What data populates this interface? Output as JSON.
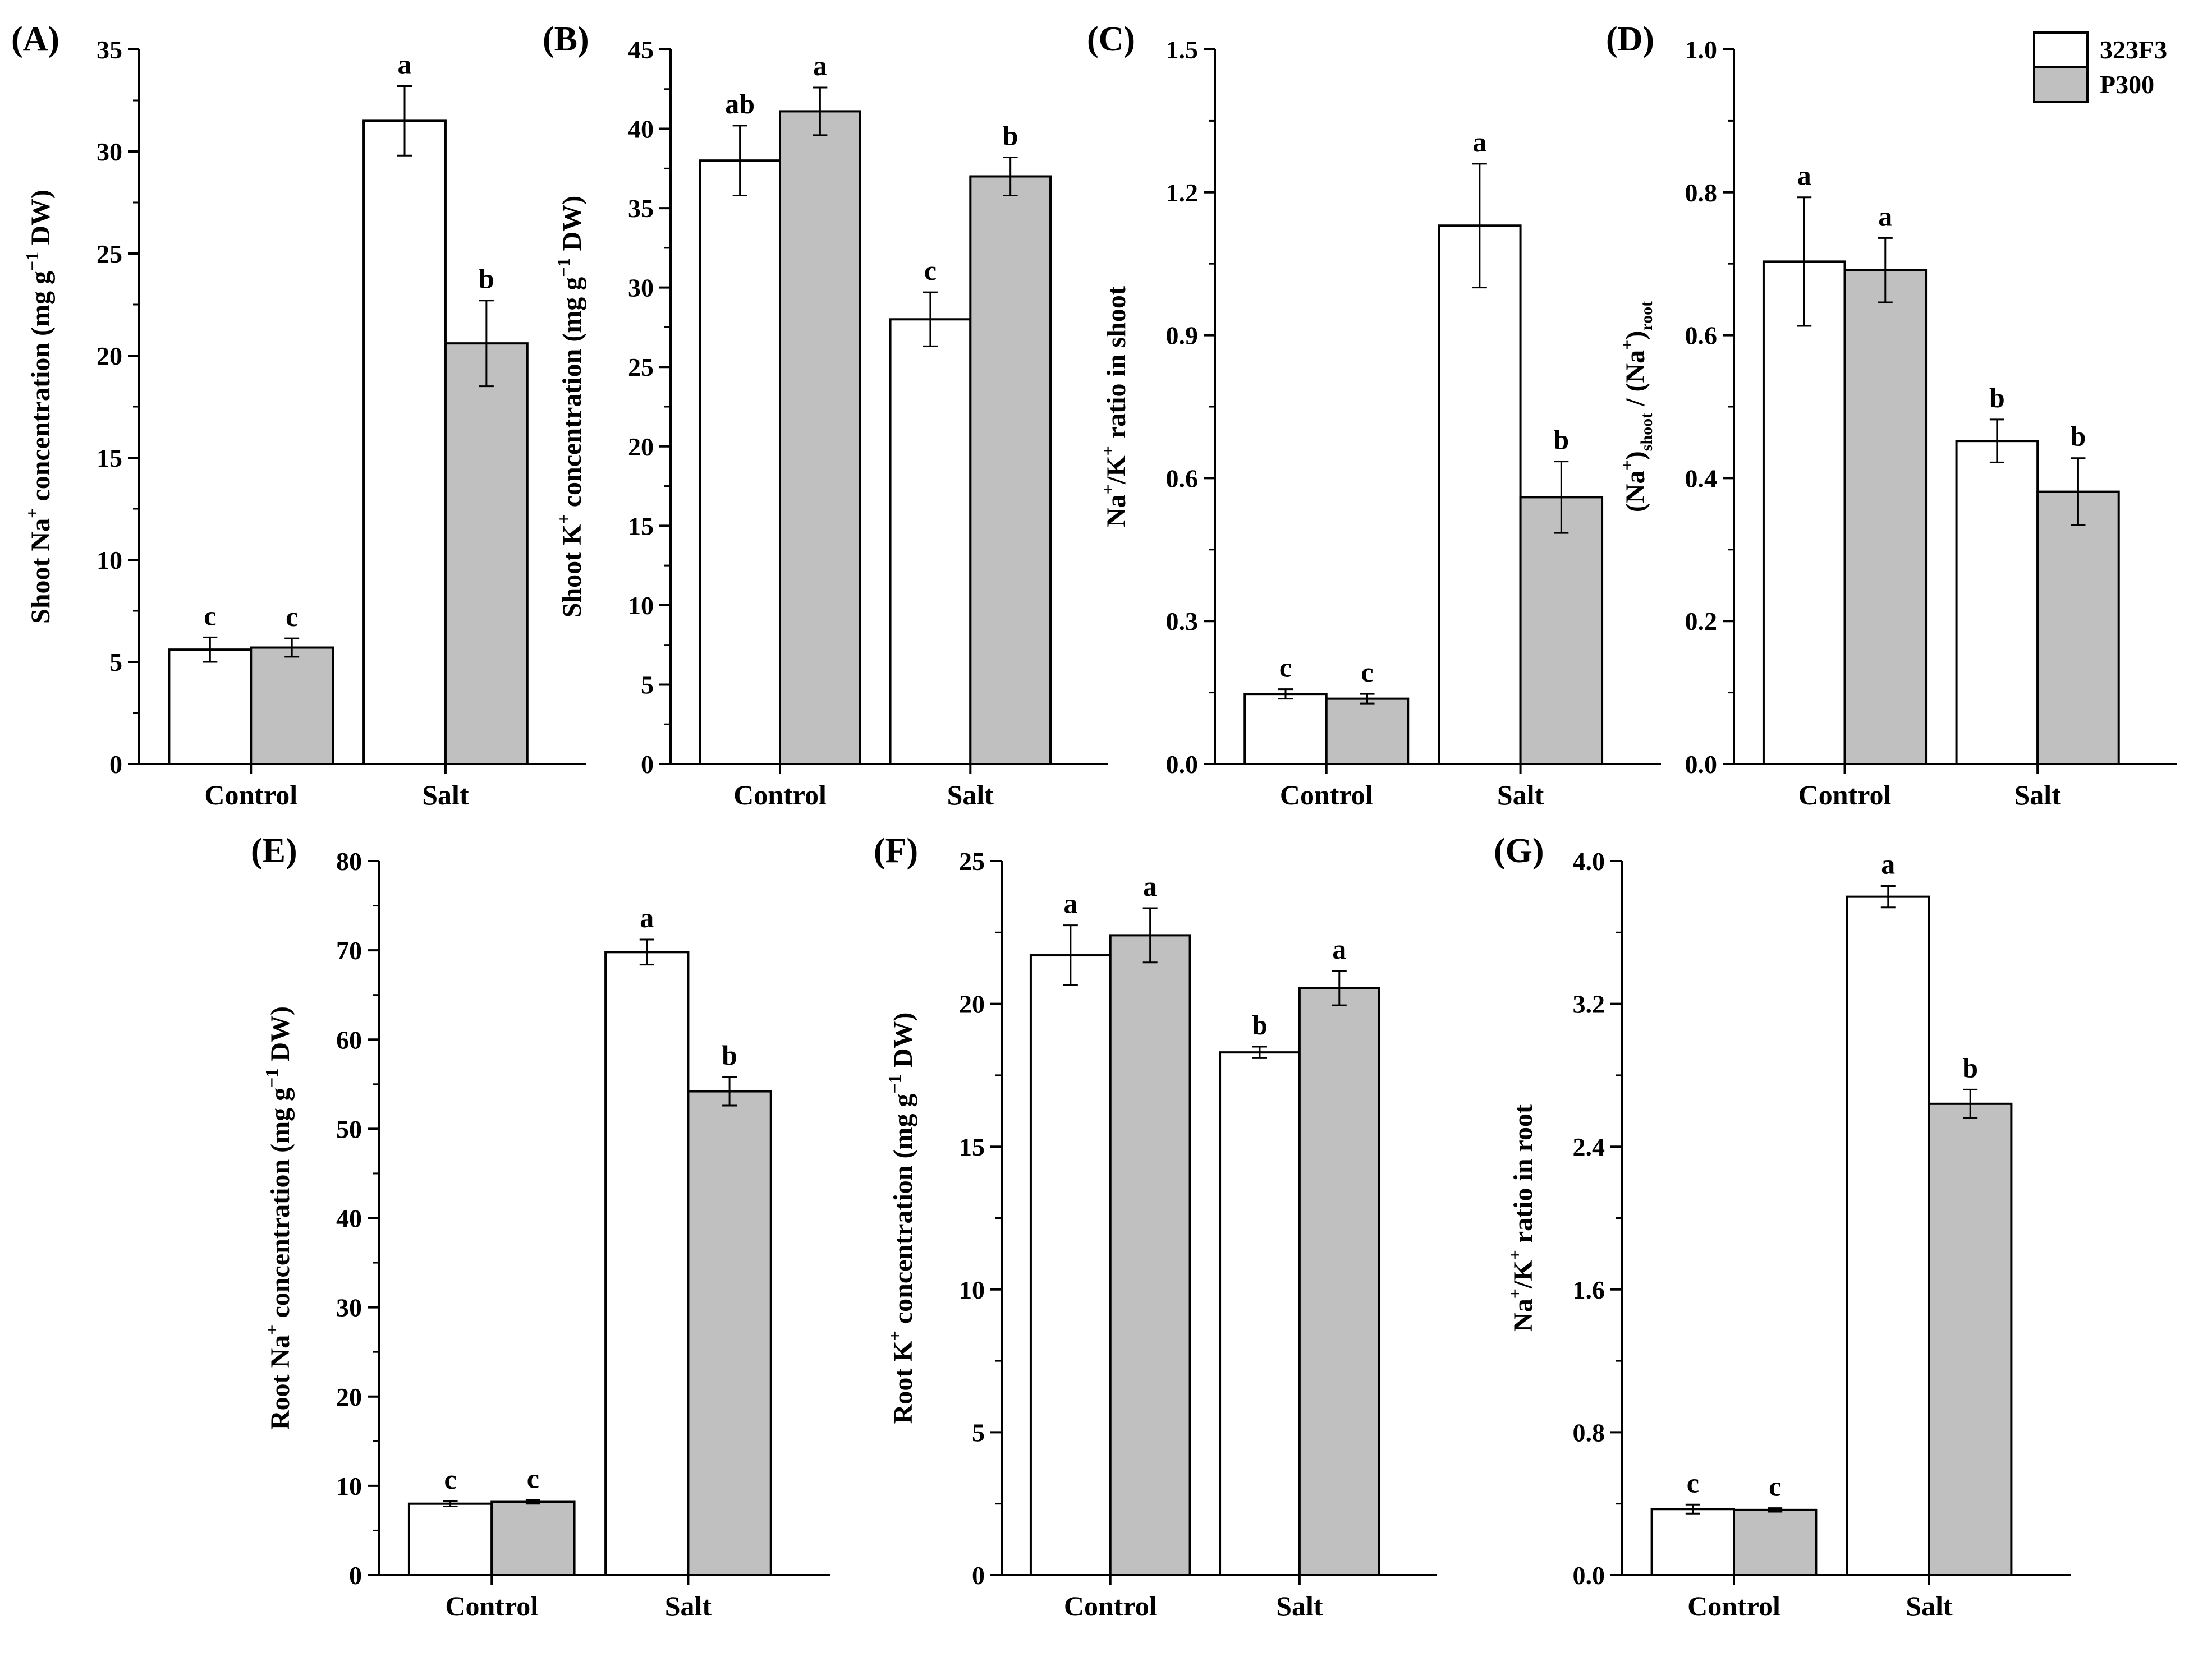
{
  "chart_data": [
    {
      "panel": "(A)",
      "type": "bar",
      "categories": [
        "Control",
        "Salt"
      ],
      "series": [
        {
          "name": "323F3",
          "values": [
            5.6,
            31.5
          ],
          "errors": [
            0.6,
            1.7
          ],
          "letters": [
            "c",
            "a"
          ]
        },
        {
          "name": "P300",
          "values": [
            5.7,
            20.6
          ],
          "errors": [
            0.45,
            2.1
          ],
          "letters": [
            "c",
            "b"
          ]
        }
      ],
      "ylabel": {
        "pre": "Shoot Na",
        "sup": "+",
        "mid": " concentration (mg g",
        "sup2": "−1",
        "post": " DW)"
      },
      "ylim": [
        0,
        35
      ],
      "yticks": [
        "0",
        "5",
        "10",
        "15",
        "20",
        "25",
        "30",
        "35"
      ],
      "grid": false
    },
    {
      "panel": "(B)",
      "type": "bar",
      "categories": [
        "Control",
        "Salt"
      ],
      "series": [
        {
          "name": "323F3",
          "values": [
            38,
            28
          ],
          "errors": [
            2.2,
            1.7
          ],
          "letters": [
            "ab",
            "c"
          ]
        },
        {
          "name": "P300",
          "values": [
            41.1,
            37
          ],
          "errors": [
            1.5,
            1.2
          ],
          "letters": [
            "a",
            "b"
          ]
        }
      ],
      "ylabel": {
        "pre": "Shoot K",
        "sup": "+",
        "mid": " concentration (mg g",
        "sup2": "−1",
        "post": " DW)"
      },
      "ylim": [
        0,
        45
      ],
      "yticks": [
        "0",
        "5",
        "10",
        "15",
        "20",
        "25",
        "30",
        "35",
        "40",
        "45"
      ],
      "grid": false
    },
    {
      "panel": "(C)",
      "type": "bar",
      "categories": [
        "Control",
        "Salt"
      ],
      "series": [
        {
          "name": "323F3",
          "values": [
            0.147,
            1.13
          ],
          "errors": [
            0.01,
            0.13
          ],
          "letters": [
            "c",
            "a"
          ]
        },
        {
          "name": "P300",
          "values": [
            0.137,
            0.56
          ],
          "errors": [
            0.01,
            0.075
          ],
          "letters": [
            "c",
            "b"
          ]
        }
      ],
      "ylabel": {
        "pre": "Na",
        "sup": "+",
        "mid": "/K",
        "sup2": "+",
        "post": " ratio in shoot"
      },
      "ylim": [
        0,
        1.5
      ],
      "yticks": [
        "0.0",
        "0.3",
        "0.6",
        "0.9",
        "1.2",
        "1.5"
      ],
      "grid": false
    },
    {
      "panel": "(D)",
      "type": "bar",
      "categories": [
        "Control",
        "Salt"
      ],
      "series": [
        {
          "name": "323F3",
          "values": [
            0.703,
            0.452
          ],
          "errors": [
            0.09,
            0.03
          ],
          "letters": [
            "a",
            "b"
          ]
        },
        {
          "name": "P300",
          "values": [
            0.691,
            0.381
          ],
          "errors": [
            0.045,
            0.047
          ],
          "letters": [
            "a",
            "b"
          ]
        }
      ],
      "ylabel": {
        "p1": "(Na",
        "s1": "+",
        "p2": ")",
        "b1": "shoot",
        "p3": " / (Na",
        "s2": "+",
        "p4": ")",
        "b2": "root"
      },
      "ylim": [
        0,
        1.0
      ],
      "yticks": [
        "0.0",
        "0.2",
        "0.4",
        "0.6",
        "0.8",
        "1.0"
      ],
      "grid": false,
      "legend": {
        "placement": "top-right",
        "entries": [
          "323F3",
          "P300"
        ]
      }
    },
    {
      "panel": "(E)",
      "type": "bar",
      "categories": [
        "Control",
        "Salt"
      ],
      "series": [
        {
          "name": "323F3",
          "values": [
            8,
            69.8
          ],
          "errors": [
            0.3,
            1.4
          ],
          "letters": [
            "c",
            "a"
          ]
        },
        {
          "name": "P300",
          "values": [
            8.2,
            54.2
          ],
          "errors": [
            0.2,
            1.6
          ],
          "letters": [
            "c",
            "b"
          ]
        }
      ],
      "ylabel": {
        "pre": "Root Na",
        "sup": "+",
        "mid": " concentration (mg g",
        "sup2": "−1",
        "post": " DW)"
      },
      "ylim": [
        0,
        80
      ],
      "yticks": [
        "0",
        "10",
        "20",
        "30",
        "40",
        "50",
        "60",
        "70",
        "80"
      ],
      "grid": false
    },
    {
      "panel": "(F)",
      "type": "bar",
      "categories": [
        "Control",
        "Salt"
      ],
      "series": [
        {
          "name": "323F3",
          "values": [
            21.7,
            18.3
          ],
          "errors": [
            1.05,
            0.2
          ],
          "letters": [
            "a",
            "b"
          ]
        },
        {
          "name": "P300",
          "values": [
            22.4,
            20.55
          ],
          "errors": [
            0.95,
            0.6
          ],
          "letters": [
            "a",
            "a"
          ]
        }
      ],
      "ylabel": {
        "pre": "Root K",
        "sup": "+",
        "mid": " concentration (mg g",
        "sup2": "−1",
        "post": " DW)"
      },
      "ylim": [
        0,
        25
      ],
      "yticks": [
        "0",
        "5",
        "10",
        "15",
        "20",
        "25"
      ],
      "grid": false
    },
    {
      "panel": "(G)",
      "type": "bar",
      "categories": [
        "Control",
        "Salt"
      ],
      "series": [
        {
          "name": "323F3",
          "values": [
            0.37,
            3.8
          ],
          "errors": [
            0.025,
            0.06
          ],
          "letters": [
            "c",
            "a"
          ]
        },
        {
          "name": "P300",
          "values": [
            0.365,
            2.64
          ],
          "errors": [
            0.01,
            0.08
          ],
          "letters": [
            "c",
            "b"
          ]
        }
      ],
      "ylabel": {
        "pre": "Na",
        "sup": "+",
        "mid": "/K",
        "sup2": "+",
        "post": " ratio in root"
      },
      "ylim": [
        0,
        4.0
      ],
      "yticks": [
        "0.0",
        "0.8",
        "1.6",
        "2.4",
        "3.2",
        "4.0"
      ],
      "grid": false
    }
  ],
  "colors": {
    "series_323F3": "#ffffff",
    "series_P300": "#c0c0c0",
    "stroke": "#000000"
  }
}
